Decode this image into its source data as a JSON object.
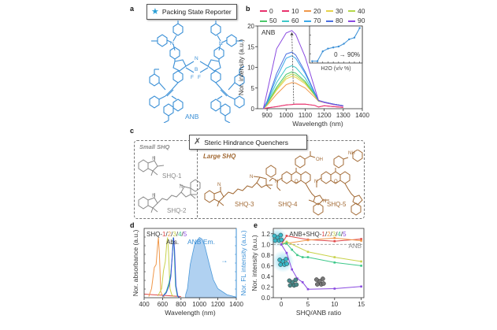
{
  "figure": {
    "panels": {
      "a": {
        "label": "a",
        "title": "Packing State Reporter",
        "title_icon": "star-icon",
        "molecule_name": "ANB",
        "atom_labels": [
          "N",
          "N",
          "N",
          "B",
          "F",
          "F"
        ],
        "color": "#3a8fd6"
      },
      "b": {
        "label": "b"
      },
      "c": {
        "label": "c",
        "title": "Steric Hindrance Quenchers",
        "title_icon": "cross-icon",
        "groups": [
          {
            "name": "Small SHQ",
            "color": "#8a8a8a",
            "molecules": [
              "SHQ-1",
              "SHQ-2"
            ]
          },
          {
            "name": "Large SHQ",
            "color": "#a26a35",
            "molecules": [
              "SHQ-3",
              "SHQ-4",
              "SHQ-5"
            ]
          }
        ],
        "functional_labels": [
          "OH",
          "NH",
          "O"
        ]
      },
      "d": {
        "label": "d"
      },
      "e": {
        "label": "e"
      }
    }
  },
  "chart_data": [
    {
      "id": "b",
      "type": "line",
      "title": "",
      "annotation": "ANB",
      "xlabel": "Wavelength (nm)",
      "ylabel": "Nor. intensity (a.u.)",
      "xlim": [
        850,
        1400
      ],
      "ylim": [
        0,
        20
      ],
      "xticks": [
        900,
        1000,
        1100,
        1200,
        1300,
        1400
      ],
      "yticks": [
        0,
        5,
        10,
        15,
        20
      ],
      "legend_title": "H2O fraction (v/v %)",
      "legend_position": "top",
      "x": [
        880,
        900,
        950,
        1000,
        1030,
        1050,
        1100,
        1150,
        1170,
        1200,
        1250,
        1300
      ],
      "series": [
        {
          "name": "0",
          "color": "#e8336e",
          "values": [
            0,
            0.2,
            0.5,
            0.9,
            1.0,
            1.1,
            1.1,
            0.8,
            0.4,
            0.7,
            0.5,
            0.3
          ]
        },
        {
          "name": "10",
          "color": "#e8336e",
          "values": [
            0,
            0.2,
            0.5,
            0.9,
            1.0,
            1.1,
            1.1,
            0.8,
            0.4,
            0.7,
            0.5,
            0.3
          ]
        },
        {
          "name": "20",
          "color": "#f0984a",
          "values": [
            0,
            0.8,
            3.5,
            5.8,
            6.3,
            6.2,
            5.0,
            2.8,
            1.8,
            1.5,
            1.0,
            0.6
          ]
        },
        {
          "name": "30",
          "color": "#e6d24a",
          "values": [
            0,
            1.0,
            4.5,
            7.2,
            7.8,
            7.6,
            6.0,
            3.2,
            1.9,
            1.6,
            1.1,
            0.7
          ]
        },
        {
          "name": "40",
          "color": "#b4d84a",
          "values": [
            0,
            1.1,
            4.8,
            7.7,
            8.4,
            8.1,
            6.3,
            3.3,
            1.9,
            1.6,
            1.1,
            0.7
          ]
        },
        {
          "name": "50",
          "color": "#4cc86a",
          "values": [
            0,
            1.2,
            5.2,
            8.3,
            8.9,
            8.6,
            6.6,
            3.4,
            1.9,
            1.6,
            1.1,
            0.7
          ]
        },
        {
          "name": "60",
          "color": "#3ec8c8",
          "values": [
            0,
            1.4,
            6.3,
            9.8,
            10.4,
            10.0,
            7.4,
            3.6,
            2.0,
            1.6,
            1.1,
            0.7
          ]
        },
        {
          "name": "70",
          "color": "#3aa8e8",
          "values": [
            0,
            1.6,
            7.5,
            12.2,
            12.8,
            12.2,
            8.5,
            3.8,
            2.0,
            1.6,
            1.1,
            0.7
          ]
        },
        {
          "name": "80",
          "color": "#4a6ee0",
          "values": [
            0,
            1.8,
            8.5,
            13.2,
            13.7,
            13.0,
            8.9,
            3.9,
            2.0,
            1.6,
            1.1,
            0.7
          ]
        },
        {
          "name": "90",
          "color": "#8a4ae0",
          "values": [
            0,
            4.0,
            14.5,
            18.3,
            18.9,
            18.0,
            12.5,
            5.0,
            2.0,
            1.5,
            1.0,
            0.6
          ]
        }
      ],
      "peak_arrow": {
        "x_start": 1040,
        "y_start": 1.2,
        "x_end": 1030,
        "y_end": 18.5
      },
      "inset": {
        "type": "line",
        "xlabel": "H2O (v/v %)",
        "annotation": "0 → 90%",
        "x": [
          0,
          10,
          20,
          30,
          40,
          50,
          60,
          70,
          80,
          90
        ],
        "values": [
          1.0,
          1.0,
          6.3,
          7.8,
          8.4,
          8.9,
          10.4,
          12.8,
          13.7,
          18.9
        ],
        "color": "#3a8fd6"
      }
    },
    {
      "id": "d",
      "type": "line",
      "title": "",
      "annotations": [
        "SHQ-1/2/3/4/5",
        "Abs.",
        "ANB Em."
      ],
      "xlabel": "Wavelength (nm)",
      "ylabel": "Nor. absorbance (a.u.)",
      "ylabel_right": "Nor. FL intensity (a.u.)",
      "xlim": [
        400,
        1400
      ],
      "ylim": [
        0,
        1.15
      ],
      "xticks": [
        400,
        600,
        800,
        1000,
        1200,
        1400
      ],
      "series": [
        {
          "name": "SHQ-1",
          "color": "#e04848",
          "x": [
            400,
            500,
            600,
            700,
            800
          ],
          "values": [
            0.06,
            0.05,
            0.04,
            0.03,
            0.02
          ]
        },
        {
          "name": "SHQ-2",
          "color": "#f0984a",
          "x": [
            450,
            480,
            510,
            530,
            545,
            555,
            565,
            580,
            600,
            620
          ],
          "values": [
            0.02,
            0.15,
            0.5,
            0.55,
            0.85,
            1.0,
            0.75,
            0.1,
            0.03,
            0.01
          ]
        },
        {
          "name": "SHQ-3",
          "color": "#c8d24a",
          "x": [
            550,
            590,
            610,
            630,
            645,
            655,
            665,
            680,
            700,
            720
          ],
          "values": [
            0.03,
            0.15,
            0.45,
            0.6,
            0.9,
            1.0,
            0.75,
            0.15,
            0.05,
            0.02
          ]
        },
        {
          "name": "SHQ-4",
          "color": "#3ec88a",
          "x": [
            600,
            640,
            670,
            690,
            705,
            715,
            725,
            740,
            760,
            780
          ],
          "values": [
            0.02,
            0.1,
            0.25,
            0.4,
            0.7,
            1.0,
            0.85,
            0.2,
            0.03,
            0.0
          ]
        },
        {
          "name": "SHQ-5",
          "color": "#3a4ee0",
          "x": [
            600,
            640,
            670,
            690,
            705,
            720,
            730,
            745,
            765,
            785
          ],
          "values": [
            0.02,
            0.08,
            0.2,
            0.35,
            0.7,
            1.0,
            0.8,
            0.2,
            0.03,
            0.0
          ]
        },
        {
          "name": "ANB Em.",
          "color": "#3a8fd6",
          "fill": "#a8cdf0",
          "x": [
            850,
            870,
            900,
            950,
            1000,
            1030,
            1060,
            1100,
            1150,
            1200,
            1300,
            1400
          ],
          "values": [
            0.05,
            0.15,
            0.55,
            0.9,
            1.0,
            0.97,
            0.85,
            0.6,
            0.3,
            0.15,
            0.05,
            0.01
          ]
        }
      ],
      "arrow_annotation": "→"
    },
    {
      "id": "e",
      "type": "line",
      "title": "",
      "annotation": "ANB+SHQ-1/2/3/4/5",
      "reference_label": "ANB",
      "reference_value": 1.0,
      "xlabel": "SHQ/ANB ratio",
      "ylabel": "Nor. intensity (a.u.)",
      "xlim": [
        -1.5,
        15.5
      ],
      "ylim": [
        0,
        1.3
      ],
      "xticks": [
        0,
        5,
        10,
        15
      ],
      "yticks": [
        0.0,
        0.2,
        0.4,
        0.6,
        0.8,
        1.0,
        1.2
      ],
      "x": [
        0,
        1,
        5,
        10,
        15
      ],
      "series": [
        {
          "name": "SHQ-1",
          "color": "#e04848",
          "x": [
            0,
            1,
            5,
            10,
            15
          ],
          "values": [
            1.0,
            1.16,
            1.09,
            1.06,
            1.1
          ]
        },
        {
          "name": "SHQ-2",
          "color": "#f0984a",
          "x": [
            0,
            1,
            5,
            10,
            15
          ],
          "values": [
            1.0,
            1.02,
            1.08,
            1.12,
            1.07
          ]
        },
        {
          "name": "SHQ-3",
          "color": "#c8d24a",
          "x": [
            0,
            1,
            5,
            10,
            15
          ],
          "values": [
            1.0,
            1.05,
            0.86,
            0.76,
            0.68
          ]
        },
        {
          "name": "SHQ-4",
          "color": "#3ec88a",
          "x": [
            0,
            1,
            2,
            3,
            4,
            5,
            10,
            15
          ],
          "values": [
            1.0,
            1.02,
            0.9,
            0.8,
            0.76,
            0.76,
            0.66,
            0.6
          ]
        },
        {
          "name": "SHQ-5",
          "color": "#8a4ae0",
          "x": [
            0,
            1,
            2,
            3,
            4,
            5,
            10,
            15
          ],
          "values": [
            1.0,
            0.84,
            0.53,
            0.36,
            0.29,
            0.16,
            0.17,
            0.21
          ]
        }
      ]
    }
  ]
}
